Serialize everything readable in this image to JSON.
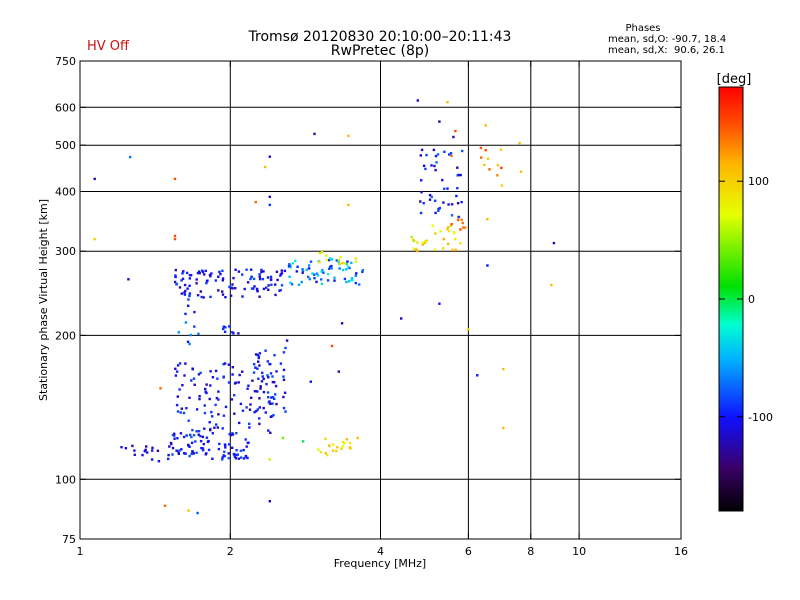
{
  "chart_data": {
    "type": "scatter",
    "title": "Tromsø 20120830 20:10:00–20:11:43",
    "subtitle": "RwPretec (8p)",
    "status": "HV Off",
    "status_color": "#d01010",
    "xlabel": "Frequency [MHz]",
    "ylabel": "Stationary phase Virtual Height [km]",
    "xscale": "log",
    "yscale": "log",
    "xlim": [
      1,
      16
    ],
    "ylim": [
      75,
      750
    ],
    "x_ticks": [
      1,
      2,
      4,
      6,
      8,
      10,
      16
    ],
    "x_tick_labels": [
      "1",
      "2",
      "4",
      "6",
      "8",
      "10",
      "16"
    ],
    "x_gridlines": [
      2,
      4,
      6,
      8,
      10
    ],
    "y_ticks": [
      75,
      100,
      200,
      300,
      400,
      500,
      600,
      750
    ],
    "y_tick_labels": [
      "75",
      "100",
      "200",
      "300",
      "400",
      "500",
      "600",
      "750"
    ],
    "y_gridlines": [
      100,
      200,
      300,
      400,
      500,
      600
    ],
    "stats": {
      "title": "Phases",
      "line1": "mean, sd,O: -90.7, 18.4",
      "line2": "mean, sd,X:  90.6, 26.1"
    },
    "colorbar": {
      "label": "[deg]",
      "range": [
        -180,
        180
      ],
      "ticks": [
        100,
        0,
        -100
      ],
      "tick_labels": [
        "100",
        "0",
        "-100"
      ]
    },
    "clusters": [
      {
        "x": [
          1.55,
          2.6
        ],
        "y": [
          240,
          275
        ],
        "phase": [
          -125,
          -80
        ],
        "n": 110
      },
      {
        "x": [
          2.6,
          3.7
        ],
        "y": [
          255,
          290
        ],
        "phase": [
          -110,
          -20
        ],
        "n": 70
      },
      {
        "x": [
          3.0,
          3.6
        ],
        "y": [
          280,
          300
        ],
        "phase": [
          60,
          110
        ],
        "n": 12
      },
      {
        "x": [
          1.5,
          2.2
        ],
        "y": [
          110,
          125
        ],
        "phase": [
          -125,
          -75
        ],
        "n": 90
      },
      {
        "x": [
          1.55,
          2.5
        ],
        "y": [
          125,
          175
        ],
        "phase": [
          -130,
          -80
        ],
        "n": 120
      },
      {
        "x": [
          2.2,
          2.6
        ],
        "y": [
          138,
          190
        ],
        "phase": [
          -125,
          -80
        ],
        "n": 40
      },
      {
        "x": [
          1.55,
          1.75
        ],
        "y": [
          180,
          250
        ],
        "phase": [
          -110,
          -60
        ],
        "n": 12
      },
      {
        "x": [
          1.9,
          2.1
        ],
        "y": [
          200,
          210
        ],
        "phase": [
          -120,
          -90
        ],
        "n": 8
      },
      {
        "x": [
          1.2,
          1.45
        ],
        "y": [
          109,
          118
        ],
        "phase": [
          -130,
          -100
        ],
        "n": 15
      },
      {
        "x": [
          3.0,
          3.5
        ],
        "y": [
          112,
          122
        ],
        "phase": [
          70,
          115
        ],
        "n": 20
      },
      {
        "x": [
          4.5,
          5.8
        ],
        "y": [
          300,
          340
        ],
        "phase": [
          55,
          120
        ],
        "n": 30
      },
      {
        "x": [
          5.5,
          5.95
        ],
        "y": [
          330,
          360
        ],
        "phase": [
          120,
          150
        ],
        "n": 8
      },
      {
        "x": [
          4.8,
          5.9
        ],
        "y": [
          350,
          490
        ],
        "phase": [
          -125,
          -70
        ],
        "n": 45
      },
      {
        "x": [
          6.3,
          7.1
        ],
        "y": [
          400,
          520
        ],
        "phase": [
          100,
          160
        ],
        "n": 10
      }
    ],
    "points": [
      {
        "x": 1.07,
        "y": 425,
        "phase": -120
      },
      {
        "x": 1.07,
        "y": 318,
        "phase": 100
      },
      {
        "x": 1.25,
        "y": 262,
        "phase": -120
      },
      {
        "x": 1.26,
        "y": 472,
        "phase": -70
      },
      {
        "x": 1.55,
        "y": 425,
        "phase": 150
      },
      {
        "x": 1.55,
        "y": 318,
        "phase": 150
      },
      {
        "x": 1.55,
        "y": 323,
        "phase": 150
      },
      {
        "x": 1.45,
        "y": 155,
        "phase": 140
      },
      {
        "x": 1.48,
        "y": 88,
        "phase": 140
      },
      {
        "x": 1.65,
        "y": 86,
        "phase": 110
      },
      {
        "x": 1.72,
        "y": 85,
        "phase": -80
      },
      {
        "x": 2.4,
        "y": 473,
        "phase": -120
      },
      {
        "x": 2.35,
        "y": 450,
        "phase": 110
      },
      {
        "x": 2.4,
        "y": 390,
        "phase": -120
      },
      {
        "x": 2.4,
        "y": 375,
        "phase": -90
      },
      {
        "x": 2.25,
        "y": 380,
        "phase": 140
      },
      {
        "x": 2.4,
        "y": 90,
        "phase": -120
      },
      {
        "x": 2.4,
        "y": 110,
        "phase": 60
      },
      {
        "x": 2.55,
        "y": 122,
        "phase": 40
      },
      {
        "x": 2.6,
        "y": 195,
        "phase": -120
      },
      {
        "x": 2.8,
        "y": 120,
        "phase": 0
      },
      {
        "x": 2.9,
        "y": 160,
        "phase": -100
      },
      {
        "x": 2.95,
        "y": 528,
        "phase": -120
      },
      {
        "x": 3.2,
        "y": 190,
        "phase": 150
      },
      {
        "x": 3.3,
        "y": 168,
        "phase": -120
      },
      {
        "x": 3.45,
        "y": 523,
        "phase": 110
      },
      {
        "x": 3.45,
        "y": 375,
        "phase": 110
      },
      {
        "x": 3.6,
        "y": 122,
        "phase": 110
      },
      {
        "x": 3.35,
        "y": 212,
        "phase": -120
      },
      {
        "x": 4.4,
        "y": 217,
        "phase": -120
      },
      {
        "x": 4.75,
        "y": 620,
        "phase": -120
      },
      {
        "x": 5.25,
        "y": 560,
        "phase": -130
      },
      {
        "x": 5.45,
        "y": 615,
        "phase": 110
      },
      {
        "x": 5.6,
        "y": 520,
        "phase": -120
      },
      {
        "x": 5.65,
        "y": 535,
        "phase": 150
      },
      {
        "x": 5.25,
        "y": 233,
        "phase": -100
      },
      {
        "x": 5.55,
        "y": 475,
        "phase": 140
      },
      {
        "x": 6.0,
        "y": 206,
        "phase": 100
      },
      {
        "x": 6.25,
        "y": 165,
        "phase": -100
      },
      {
        "x": 6.5,
        "y": 550,
        "phase": 110
      },
      {
        "x": 6.5,
        "y": 488,
        "phase": 150
      },
      {
        "x": 6.55,
        "y": 350,
        "phase": 110
      },
      {
        "x": 6.55,
        "y": 280,
        "phase": -100
      },
      {
        "x": 7.05,
        "y": 170,
        "phase": 110
      },
      {
        "x": 7.05,
        "y": 128,
        "phase": 110
      },
      {
        "x": 7.6,
        "y": 505,
        "phase": 110
      },
      {
        "x": 7.65,
        "y": 440,
        "phase": 110
      },
      {
        "x": 8.9,
        "y": 312,
        "phase": -120
      },
      {
        "x": 8.8,
        "y": 255,
        "phase": 110
      }
    ]
  }
}
